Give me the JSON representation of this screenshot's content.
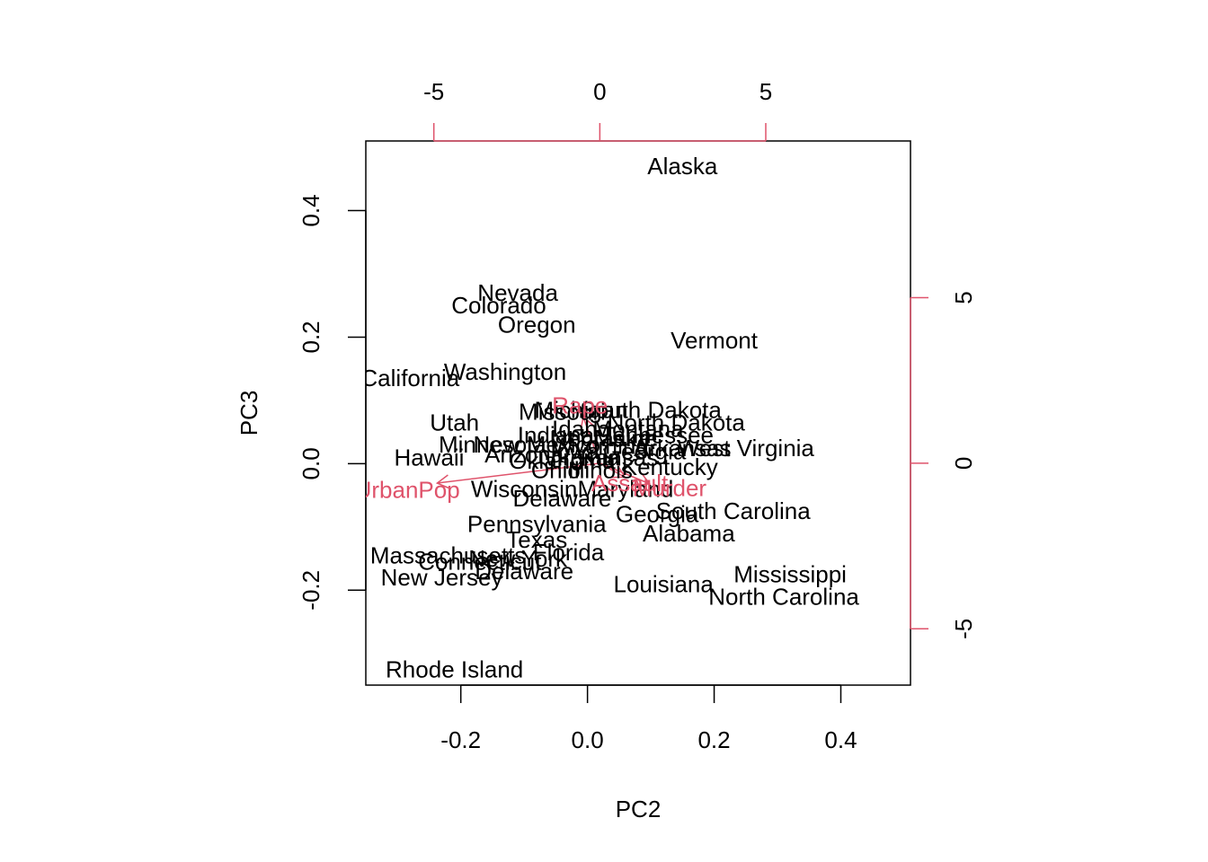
{
  "colors": {
    "points": "#000000",
    "arrows": "#DF536B",
    "axis": "#000000"
  },
  "chart_data": {
    "type": "scatter",
    "xlabel": "PC2",
    "ylabel": "PC3",
    "xlim": [
      -0.35,
      0.51
    ],
    "ylim": [
      -0.35,
      0.51
    ],
    "x_ticks": [
      -0.2,
      0.0,
      0.2,
      0.4
    ],
    "y_ticks": [
      -0.2,
      0.0,
      0.2,
      0.4
    ],
    "x_tick_labels": [
      "-0.2",
      "0.0",
      "0.2",
      "0.4"
    ],
    "y_tick_labels": [
      "-0.2",
      "0.0",
      "0.2",
      "0.4"
    ],
    "top_axis": {
      "range": [
        -7.05,
        9.36
      ],
      "ticks": [
        -5,
        0,
        5
      ],
      "tick_labels": [
        "-5",
        "0",
        "5"
      ]
    },
    "right_axis": {
      "range": [
        -6.7,
        9.73
      ],
      "ticks": [
        -5,
        0,
        5
      ],
      "tick_labels": [
        "-5",
        "0",
        "5"
      ]
    },
    "points": [
      {
        "label": "Alaska",
        "x": 0.15,
        "y": 0.47
      },
      {
        "label": "Nevada",
        "x": -0.11,
        "y": 0.27
      },
      {
        "label": "Colorado",
        "x": -0.14,
        "y": 0.25
      },
      {
        "label": "Oregon",
        "x": -0.08,
        "y": 0.22
      },
      {
        "label": "Vermont",
        "x": 0.2,
        "y": 0.195
      },
      {
        "label": "Washington",
        "x": -0.13,
        "y": 0.145
      },
      {
        "label": "California",
        "x": -0.28,
        "y": 0.135
      },
      {
        "label": "Michigan",
        "x": -0.01,
        "y": 0.085
      },
      {
        "label": "South Dakota",
        "x": 0.1,
        "y": 0.085
      },
      {
        "label": "Missouri",
        "x": -0.04,
        "y": 0.082
      },
      {
        "label": "North Dakota",
        "x": 0.14,
        "y": 0.065
      },
      {
        "label": "Utah",
        "x": -0.21,
        "y": 0.065
      },
      {
        "label": "Idaho",
        "x": -0.01,
        "y": 0.055
      },
      {
        "label": "Montana",
        "x": 0.08,
        "y": 0.055
      },
      {
        "label": "Indiana",
        "x": -0.05,
        "y": 0.045
      },
      {
        "label": "Tennessee",
        "x": 0.11,
        "y": 0.045
      },
      {
        "label": "Nebraska",
        "x": 0.02,
        "y": 0.04
      },
      {
        "label": "Maine",
        "x": 0.06,
        "y": 0.04
      },
      {
        "label": "New Mexico",
        "x": -0.08,
        "y": 0.03
      },
      {
        "label": "Wyoming",
        "x": 0.02,
        "y": 0.028
      },
      {
        "label": "Arkansas",
        "x": 0.15,
        "y": 0.025
      },
      {
        "label": "West Virginia",
        "x": 0.25,
        "y": 0.025
      },
      {
        "label": "Minnesota",
        "x": -0.15,
        "y": 0.03
      },
      {
        "label": "Iowa",
        "x": -0.02,
        "y": 0.02
      },
      {
        "label": "Georgia",
        "x": 0.09,
        "y": 0.02
      },
      {
        "label": "Kansas",
        "x": 0.05,
        "y": 0.01
      },
      {
        "label": "Arizona",
        "x": -0.1,
        "y": 0.015
      },
      {
        "label": "Hawaii",
        "x": -0.25,
        "y": 0.01
      },
      {
        "label": "Oklahoma",
        "x": -0.04,
        "y": 0.005
      },
      {
        "label": "Virginia",
        "x": -0.01,
        "y": 0.01
      },
      {
        "label": "Kentucky",
        "x": 0.13,
        "y": -0.005
      },
      {
        "label": "Ohio",
        "x": -0.05,
        "y": -0.01
      },
      {
        "label": "Illinois",
        "x": 0.02,
        "y": -0.01
      },
      {
        "label": "Wisconsin",
        "x": -0.1,
        "y": -0.04
      },
      {
        "label": "Maryland",
        "x": 0.06,
        "y": -0.04
      },
      {
        "label": "Delaware",
        "x": -0.04,
        "y": -0.055
      },
      {
        "label": "South Carolina",
        "x": 0.23,
        "y": -0.075
      },
      {
        "label": "Georgia",
        "x": 0.11,
        "y": -0.08
      },
      {
        "label": "Pennsylvania",
        "x": -0.08,
        "y": -0.095
      },
      {
        "label": "Alabama",
        "x": 0.16,
        "y": -0.11
      },
      {
        "label": "Texas",
        "x": -0.08,
        "y": -0.12
      },
      {
        "label": "Florida",
        "x": -0.03,
        "y": -0.14
      },
      {
        "label": "Massachusetts",
        "x": -0.22,
        "y": -0.145
      },
      {
        "label": "New York",
        "x": -0.11,
        "y": -0.15
      },
      {
        "label": "Connecticut",
        "x": -0.17,
        "y": -0.155
      },
      {
        "label": "Delaware",
        "x": -0.1,
        "y": -0.17
      },
      {
        "label": "New Jersey",
        "x": -0.23,
        "y": -0.18
      },
      {
        "label": "Mississippi",
        "x": 0.32,
        "y": -0.175
      },
      {
        "label": "Louisiana",
        "x": 0.12,
        "y": -0.19
      },
      {
        "label": "North Carolina",
        "x": 0.31,
        "y": -0.21
      },
      {
        "label": "Rhode Island",
        "x": -0.21,
        "y": -0.325
      }
    ],
    "loadings": [
      {
        "label": "Rape",
        "x": -0.5,
        "y": 1.4,
        "label_x": -0.6,
        "label_y": 1.75
      },
      {
        "label": "UrbanPop",
        "x": -4.9,
        "y": -0.6,
        "label_x": -5.8,
        "label_y": -0.8
      },
      {
        "label": "Assault",
        "x": 0.75,
        "y": -0.42,
        "label_x": 0.9,
        "label_y": -0.6
      },
      {
        "label": "Murder",
        "x": 1.5,
        "y": -0.62,
        "label_x": 2.1,
        "label_y": -0.75
      }
    ]
  }
}
